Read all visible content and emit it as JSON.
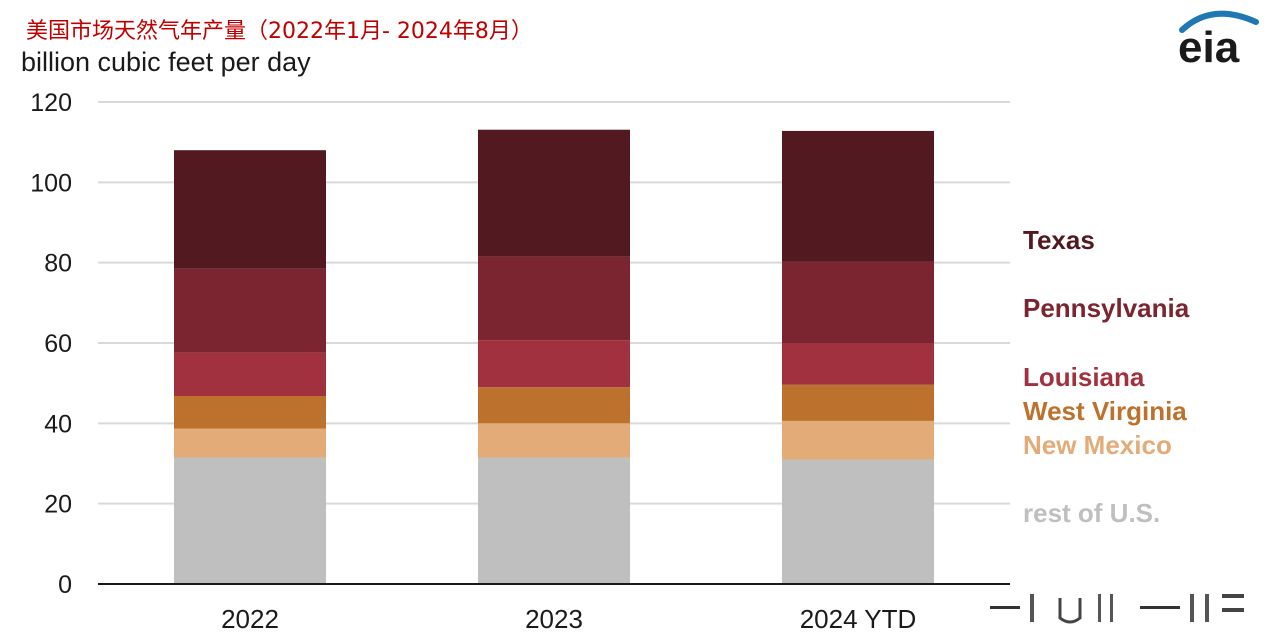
{
  "title": "美国市场天然气年产量（2022年1月- 2024年8月）",
  "logo_text": "eia",
  "chart_data": {
    "type": "bar",
    "stacked": true,
    "ylabel": "billion cubic feet per day",
    "ylim": [
      0,
      120
    ],
    "yticks": [
      0,
      20,
      40,
      60,
      80,
      100,
      120
    ],
    "grid": true,
    "legend_placement": "right",
    "categories": [
      "2022",
      "2023",
      "2024 YTD"
    ],
    "series": [
      {
        "name": "rest of U.S.",
        "color": "#bfbfbf",
        "values": [
          31.5,
          31.5,
          31.0
        ]
      },
      {
        "name": "New Mexico",
        "color": "#e3ab78",
        "values": [
          7.2,
          8.5,
          9.6
        ]
      },
      {
        "name": "West Virginia",
        "color": "#bc722c",
        "values": [
          8.1,
          9.0,
          9.0
        ]
      },
      {
        "name": "Louisiana",
        "color": "#a1313e",
        "values": [
          10.8,
          11.7,
          10.4
        ]
      },
      {
        "name": "Pennsylvania",
        "color": "#7a2530",
        "values": [
          20.9,
          20.8,
          20.2
        ]
      },
      {
        "name": "Texas",
        "color": "#521a20",
        "values": [
          29.5,
          31.6,
          32.6
        ]
      }
    ]
  }
}
